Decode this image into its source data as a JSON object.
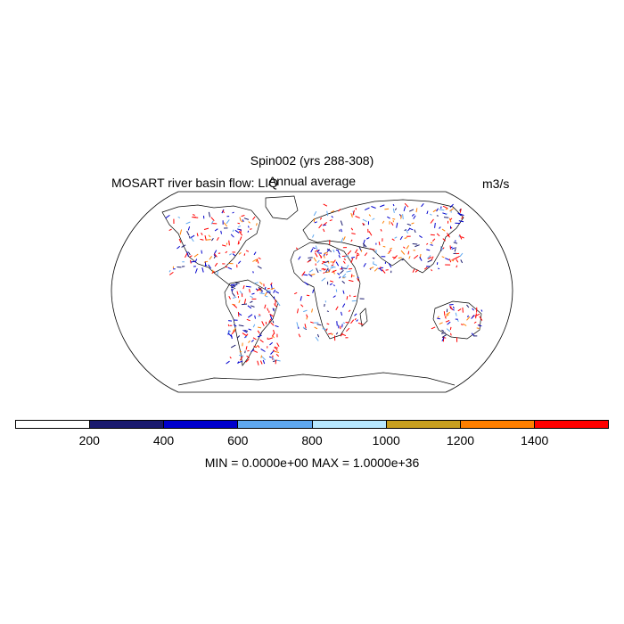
{
  "title": "Spin002 (yrs 288-308)",
  "left_label": "MOSART river basin flow: LIQ",
  "center_label": "Annual average",
  "units": "m3/s",
  "stats": "MIN = 0.0000e+00 MAX = 1.0000e+36",
  "colorbar": {
    "colors": [
      "#ffffff",
      "#1a1a6e",
      "#0000cd",
      "#5fa8f0",
      "#b8e8ff",
      "#c8a020",
      "#ff7f00",
      "#ff0000"
    ],
    "ticks": [
      "200",
      "400",
      "600",
      "800",
      "1000",
      "1200",
      "1400"
    ]
  }
}
